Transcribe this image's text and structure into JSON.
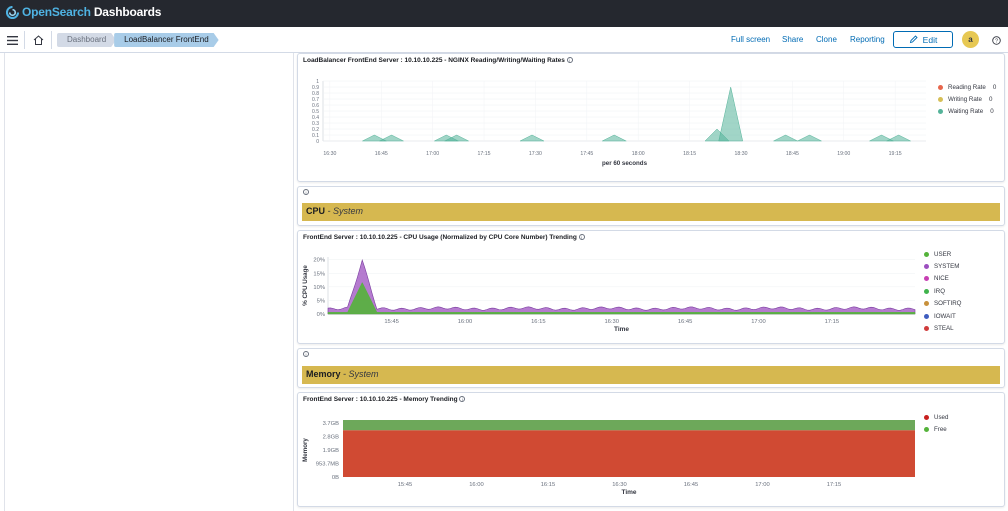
{
  "app": {
    "brand_open": "Open",
    "brand_search": "Search",
    "brand_rest": " Dashboards"
  },
  "breadcrumbs": [
    "Dashboard",
    "LoadBalancer FrontEnd"
  ],
  "nav": {
    "full_screen": "Full screen",
    "share": "Share",
    "clone": "Clone",
    "reporting": "Reporting",
    "edit": "Edit",
    "avatar_initial": "a"
  },
  "panels": {
    "nginx": {
      "title": "LoadBalancer FrontEnd Server : 10.10.10.225 - NGINX Reading/Writing/Waiting Rates",
      "xlabel": "per 60 seconds",
      "legend": [
        {
          "label": "Reading Rate",
          "value": "0",
          "color": "#e7664c"
        },
        {
          "label": "Writing Rate",
          "value": "0",
          "color": "#d6bf57"
        },
        {
          "label": "Waiting Rate",
          "value": "0",
          "color": "#54b399"
        }
      ]
    },
    "cpu_header": {
      "title": "CPU",
      "subtitle": "System"
    },
    "cpu": {
      "title": "FrontEnd Server : 10.10.10.225 - CPU Usage (Normalized by CPU Core Number) Trending",
      "legend": [
        {
          "label": "USER",
          "color": "#54b33a"
        },
        {
          "label": "SYSTEM",
          "color": "#9c4fbf"
        },
        {
          "label": "NICE",
          "color": "#c73fb3"
        },
        {
          "label": "IRQ",
          "color": "#3fb34c"
        },
        {
          "label": "SOFTIRQ",
          "color": "#c8913b"
        },
        {
          "label": "IOWAIT",
          "color": "#3f5dbf"
        },
        {
          "label": "STEAL",
          "color": "#d03b3b"
        }
      ]
    },
    "memory_header": {
      "title": "Memory",
      "subtitle": "System"
    },
    "memory": {
      "title": "FrontEnd Server : 10.10.10.225 - Memory Trending",
      "legend": [
        {
          "label": "Used",
          "color": "#c8201e"
        },
        {
          "label": "Free",
          "color": "#54b33a"
        }
      ]
    }
  },
  "chart_data": [
    {
      "type": "area",
      "title": "LoadBalancer FrontEnd Server : 10.10.10.225 - NGINX Reading/Writing/Waiting Rates",
      "xlabel": "per 60 seconds",
      "ylabel": "",
      "x_ticks": [
        "16:30",
        "16:45",
        "17:00",
        "17:15",
        "17:30",
        "17:45",
        "18:00",
        "18:15",
        "18:30",
        "18:45",
        "19:00",
        "19:15"
      ],
      "y_ticks": [
        "0",
        "0.1",
        "0.2",
        "0.3",
        "0.4",
        "0.5",
        "0.6",
        "0.7",
        "0.8",
        "0.9",
        "1"
      ],
      "ylim": [
        0,
        1
      ],
      "series": [
        {
          "name": "Waiting Rate",
          "points": [
            [
              "16:43",
              0.1
            ],
            [
              "16:48",
              0.1
            ],
            [
              "17:04",
              0.1
            ],
            [
              "17:07",
              0.1
            ],
            [
              "17:29",
              0.1
            ],
            [
              "17:53",
              0.1
            ],
            [
              "18:23",
              0.2
            ],
            [
              "18:27",
              0.9
            ],
            [
              "18:43",
              0.1
            ],
            [
              "18:50",
              0.1
            ],
            [
              "19:11",
              0.1
            ],
            [
              "19:16",
              0.1
            ]
          ]
        }
      ],
      "legend": "right"
    },
    {
      "type": "area",
      "title": "FrontEnd Server : 10.10.10.225 - CPU Usage (Normalized by CPU Core Number) Trending",
      "xlabel": "Time",
      "ylabel": "% CPU Usage",
      "x_ticks": [
        "15:45",
        "16:00",
        "16:15",
        "16:30",
        "16:45",
        "17:00",
        "17:15"
      ],
      "y_ticks": [
        "0%",
        "5%",
        "10%",
        "15%",
        "20%"
      ],
      "ylim": [
        0,
        21
      ],
      "series": [
        {
          "name": "USER",
          "values_approx": "~0.5% baseline, peak ~12% at ~15:39"
        },
        {
          "name": "SYSTEM",
          "values_approx": "~1.5% baseline, peak ~20% at ~15:39"
        }
      ],
      "legend": "right"
    },
    {
      "type": "area",
      "title": "FrontEnd Server : 10.10.10.225 - Memory Trending",
      "xlabel": "Time",
      "ylabel": "Memory",
      "x_ticks": [
        "15:45",
        "16:00",
        "16:15",
        "16:30",
        "16:45",
        "17:00",
        "17:15"
      ],
      "y_ticks": [
        "0B",
        "953.7MB",
        "1.9GB",
        "2.8GB",
        "3.7GB"
      ],
      "series": [
        {
          "name": "Used",
          "value": "3.2GB"
        },
        {
          "name": "Free",
          "value": "0.5GB"
        }
      ],
      "legend": "right"
    }
  ]
}
